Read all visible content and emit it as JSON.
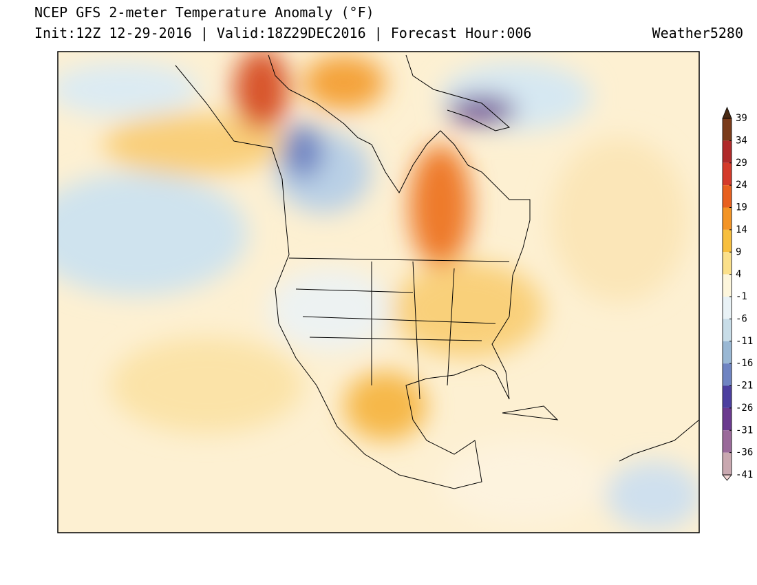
{
  "header": {
    "title": "NCEP GFS 2-meter Temperature Anomaly (°F)",
    "subtitle": "Init:12Z 12-29-2016 | Valid:18Z29DEC2016 | Forecast Hour:006",
    "credit": "Weather5280"
  },
  "colorbar": {
    "ticks": [
      39,
      34,
      29,
      24,
      19,
      14,
      9,
      4,
      -1,
      -6,
      -11,
      -16,
      -21,
      -26,
      -31,
      -36,
      -41
    ],
    "colors": [
      "#7a3b1a",
      "#b02a2a",
      "#d43a2a",
      "#e8601e",
      "#f39425",
      "#f7bf3e",
      "#fbe08a",
      "#fdf6dc",
      "#e9f2f6",
      "#c8dde8",
      "#9ab8d4",
      "#6f84c2",
      "#4c3f9f",
      "#6b3a8f",
      "#9a6a9a",
      "#c9a8b0"
    ],
    "over_color": "#4a2a14",
    "under_color": "#f2d5d5"
  }
}
